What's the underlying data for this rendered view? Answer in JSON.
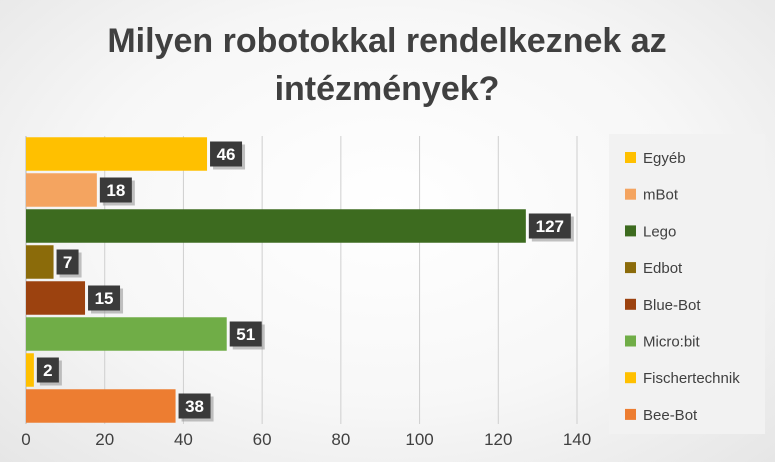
{
  "chart_data": {
    "type": "bar",
    "orientation": "horizontal",
    "title": "Milyen robotokkal rendelkeznek az intézmények?",
    "title_lines": [
      "Milyen robotokkal rendelkeznek az",
      "intézmények?"
    ],
    "categories": [
      "Egyéb",
      "mBot",
      "Lego",
      "Edbot",
      "Blue-Bot",
      "Micro:bit",
      "Fischertechnik",
      "Bee-Bot"
    ],
    "values": [
      46,
      18,
      127,
      7,
      15,
      51,
      2,
      38
    ],
    "colors": [
      "#FFC000",
      "#F4A460",
      "#3D6B1F",
      "#8B6B0A",
      "#9C420F",
      "#70AD47",
      "#FFC000",
      "#ED7D31"
    ],
    "xlim": [
      0,
      140
    ],
    "xticks": [
      0,
      20,
      40,
      60,
      80,
      100,
      120,
      140
    ],
    "grid": true,
    "legend": "right",
    "data_labels": true
  }
}
